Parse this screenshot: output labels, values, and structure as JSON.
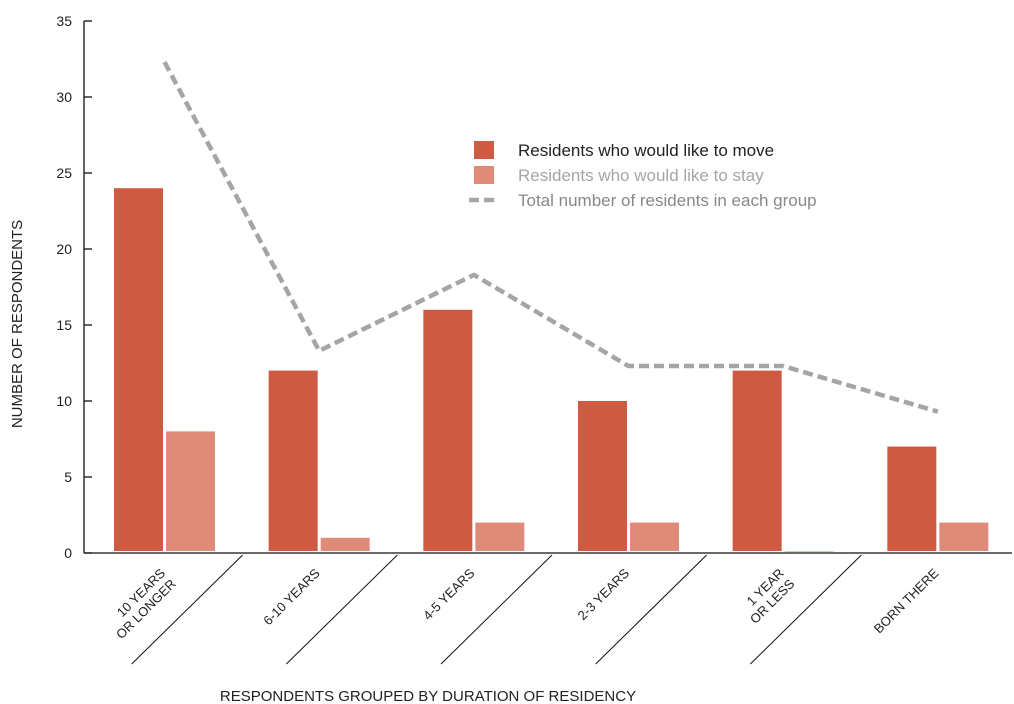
{
  "chart_data": {
    "type": "bar",
    "title": "",
    "xlabel": "RESPONDENTS GROUPED BY DURATION OF RESIDENCY",
    "ylabel": "NUMBER OF RESPONDENTS",
    "ylim": [
      0,
      35
    ],
    "yticks": [
      0,
      5,
      10,
      15,
      20,
      25,
      30,
      35
    ],
    "grid": false,
    "legend_position": "top-right",
    "categories": [
      [
        "10 YEARS",
        "OR LONGER"
      ],
      [
        "6-10 YEARS"
      ],
      [
        "4-5 YEARS"
      ],
      [
        "2-3 YEARS"
      ],
      [
        "1 YEAR",
        "OR LESS"
      ],
      [
        "BORN THERE"
      ]
    ],
    "series": [
      {
        "name": "Residents who would like to move",
        "type": "bar",
        "color": "#cf5a43",
        "values": [
          24,
          12,
          16,
          10,
          12,
          7
        ]
      },
      {
        "name": "Residents who would like to stay",
        "type": "bar",
        "color": "#e08b7a",
        "values": [
          8,
          1,
          2,
          2,
          0.1,
          2
        ]
      },
      {
        "name": "Total number of residents in each group",
        "type": "line",
        "style": "dashed",
        "color": "#a5a5a5",
        "values": [
          32.3,
          13.3,
          18.3,
          12.3,
          12.3,
          9.3
        ]
      }
    ],
    "legend_text_colors": [
      "#222222",
      "#a5a5a5",
      "#888888"
    ]
  }
}
